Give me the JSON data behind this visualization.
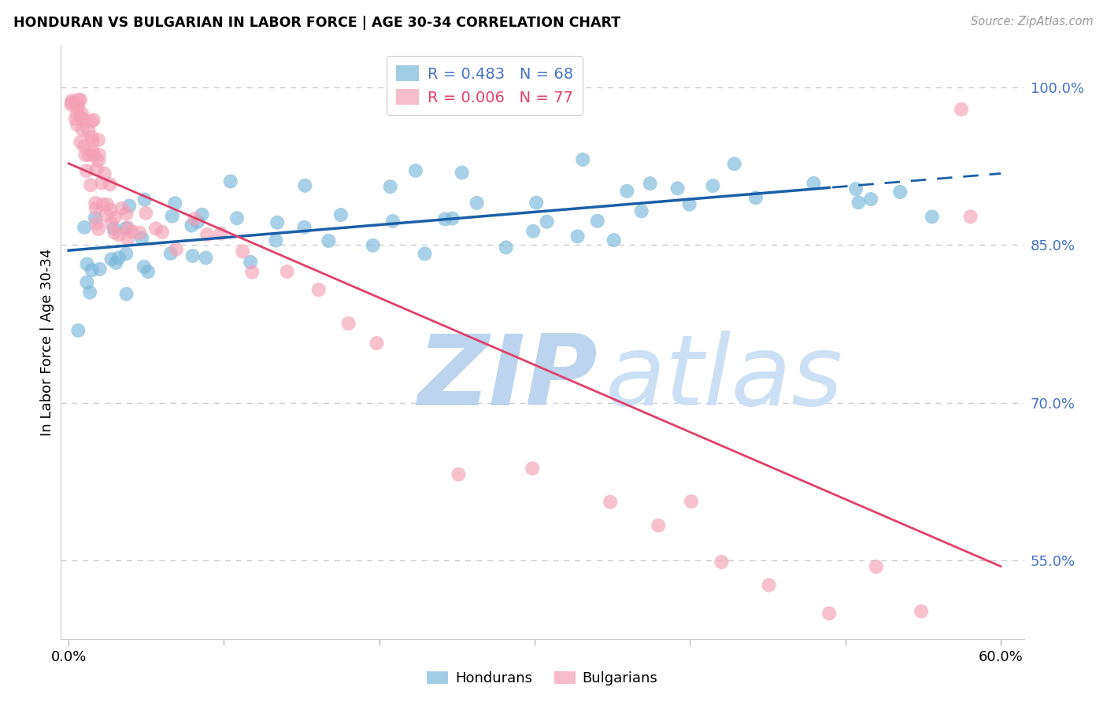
{
  "title": "HONDURAN VS BULGARIAN IN LABOR FORCE | AGE 30-34 CORRELATION CHART",
  "source": "Source: ZipAtlas.com",
  "ylabel": "In Labor Force | Age 30-34",
  "right_yticks": [
    0.55,
    0.7,
    0.85,
    1.0
  ],
  "right_yticklabels": [
    "55.0%",
    "70.0%",
    "85.0%",
    "100.0%"
  ],
  "xlim": [
    -0.005,
    0.615
  ],
  "ylim": [
    0.475,
    1.04
  ],
  "blue_R": 0.483,
  "blue_N": 68,
  "pink_R": 0.006,
  "pink_N": 77,
  "blue_color": "#7ab8d9",
  "pink_color": "#f4a0b5",
  "blue_line_color": "#1a5fa8",
  "pink_line_color": "#e0406a",
  "watermark_zip_color": "#bcd4ed",
  "watermark_atlas_color": "#cce0f5",
  "legend_label_blue": "R = 0.483   N = 68",
  "legend_label_pink": "R = 0.006   N = 77",
  "bottom_legend_hondurans": "Hondurans",
  "bottom_legend_bulgarians": "Bulgarians",
  "blue_x": [
    0.005,
    0.008,
    0.01,
    0.012,
    0.015,
    0.017,
    0.02,
    0.022,
    0.025,
    0.028,
    0.03,
    0.033,
    0.035,
    0.038,
    0.04,
    0.043,
    0.045,
    0.048,
    0.05,
    0.055,
    0.06,
    0.065,
    0.07,
    0.075,
    0.08,
    0.085,
    0.09,
    0.095,
    0.1,
    0.11,
    0.12,
    0.13,
    0.14,
    0.15,
    0.16,
    0.17,
    0.18,
    0.19,
    0.2,
    0.21,
    0.22,
    0.23,
    0.24,
    0.25,
    0.26,
    0.27,
    0.28,
    0.29,
    0.3,
    0.31,
    0.32,
    0.33,
    0.34,
    0.35,
    0.36,
    0.37,
    0.38,
    0.39,
    0.4,
    0.41,
    0.43,
    0.45,
    0.48,
    0.5,
    0.51,
    0.52,
    0.54,
    0.56
  ],
  "blue_y": [
    0.82,
    0.79,
    0.84,
    0.81,
    0.83,
    0.85,
    0.8,
    0.83,
    0.86,
    0.82,
    0.84,
    0.87,
    0.83,
    0.85,
    0.88,
    0.82,
    0.86,
    0.84,
    0.83,
    0.87,
    0.85,
    0.83,
    0.88,
    0.86,
    0.84,
    0.87,
    0.85,
    0.88,
    0.87,
    0.86,
    0.84,
    0.88,
    0.87,
    0.9,
    0.86,
    0.88,
    0.87,
    0.86,
    0.88,
    0.87,
    0.89,
    0.85,
    0.88,
    0.87,
    0.9,
    0.88,
    0.87,
    0.86,
    0.89,
    0.88,
    0.87,
    0.9,
    0.88,
    0.87,
    0.89,
    0.88,
    0.91,
    0.89,
    0.88,
    0.9,
    0.91,
    0.89,
    0.92,
    0.91,
    0.9,
    0.89,
    0.92,
    0.91
  ],
  "pink_x": [
    0.002,
    0.003,
    0.004,
    0.005,
    0.005,
    0.006,
    0.006,
    0.007,
    0.007,
    0.008,
    0.008,
    0.009,
    0.009,
    0.01,
    0.01,
    0.011,
    0.011,
    0.012,
    0.012,
    0.013,
    0.013,
    0.014,
    0.014,
    0.015,
    0.015,
    0.016,
    0.016,
    0.017,
    0.017,
    0.018,
    0.018,
    0.019,
    0.019,
    0.02,
    0.02,
    0.021,
    0.022,
    0.023,
    0.024,
    0.025,
    0.026,
    0.027,
    0.028,
    0.029,
    0.03,
    0.032,
    0.034,
    0.036,
    0.038,
    0.04,
    0.042,
    0.045,
    0.05,
    0.055,
    0.06,
    0.07,
    0.08,
    0.09,
    0.1,
    0.11,
    0.12,
    0.14,
    0.16,
    0.18,
    0.2,
    0.25,
    0.3,
    0.35,
    0.38,
    0.4,
    0.42,
    0.45,
    0.49,
    0.52,
    0.55,
    0.575,
    0.58
  ],
  "pink_y": [
    0.99,
    0.98,
    0.99,
    0.98,
    0.97,
    0.99,
    0.96,
    0.98,
    0.97,
    0.99,
    0.95,
    0.98,
    0.96,
    0.97,
    0.95,
    0.97,
    0.93,
    0.96,
    0.94,
    0.96,
    0.92,
    0.95,
    0.93,
    0.96,
    0.91,
    0.94,
    0.92,
    0.95,
    0.9,
    0.94,
    0.89,
    0.93,
    0.88,
    0.92,
    0.87,
    0.91,
    0.9,
    0.88,
    0.92,
    0.89,
    0.88,
    0.87,
    0.9,
    0.88,
    0.87,
    0.86,
    0.88,
    0.87,
    0.86,
    0.87,
    0.86,
    0.85,
    0.88,
    0.87,
    0.86,
    0.85,
    0.87,
    0.86,
    0.85,
    0.84,
    0.83,
    0.82,
    0.8,
    0.78,
    0.76,
    0.65,
    0.63,
    0.61,
    0.6,
    0.62,
    0.55,
    0.52,
    0.5,
    0.54,
    0.51,
    0.99,
    0.87
  ]
}
